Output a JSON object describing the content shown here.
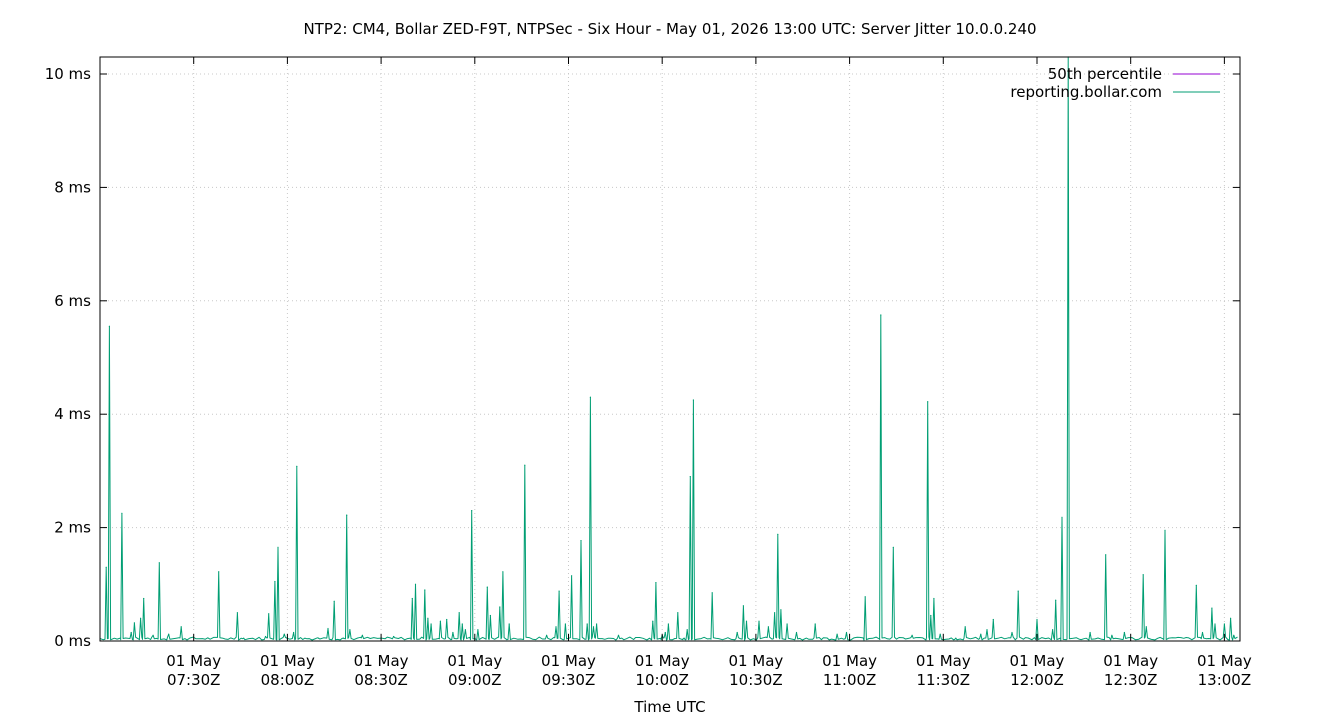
{
  "chart_data": {
    "type": "line",
    "title": "NTP2: CM4, Bollar ZED-F9T, NTPSec - Six Hour - May 01, 2026 13:00 UTC: Server Jitter 10.0.0.240",
    "xlabel": "Time UTC",
    "ylabel": "",
    "x_range": [
      "2026-05-01T07:00Z",
      "2026-05-01T13:05Z"
    ],
    "ylim": [
      0,
      10.3
    ],
    "y_unit": "ms",
    "y_ticks": [
      {
        "value": 0,
        "label": "0 ms"
      },
      {
        "value": 2,
        "label": "2 ms"
      },
      {
        "value": 4,
        "label": "4 ms"
      },
      {
        "value": 6,
        "label": "6 ms"
      },
      {
        "value": 8,
        "label": "8 ms"
      },
      {
        "value": 10,
        "label": "10 ms"
      }
    ],
    "x_ticks": [
      {
        "value": "2026-05-01T07:30Z",
        "line1": "01 May",
        "line2": "07:30Z"
      },
      {
        "value": "2026-05-01T08:00Z",
        "line1": "01 May",
        "line2": "08:00Z"
      },
      {
        "value": "2026-05-01T08:30Z",
        "line1": "01 May",
        "line2": "08:30Z"
      },
      {
        "value": "2026-05-01T09:00Z",
        "line1": "01 May",
        "line2": "09:00Z"
      },
      {
        "value": "2026-05-01T09:30Z",
        "line1": "01 May",
        "line2": "09:30Z"
      },
      {
        "value": "2026-05-01T10:00Z",
        "line1": "01 May",
        "line2": "10:00Z"
      },
      {
        "value": "2026-05-01T10:30Z",
        "line1": "01 May",
        "line2": "10:30Z"
      },
      {
        "value": "2026-05-01T11:00Z",
        "line1": "01 May",
        "line2": "11:00Z"
      },
      {
        "value": "2026-05-01T11:30Z",
        "line1": "01 May",
        "line2": "11:30Z"
      },
      {
        "value": "2026-05-01T12:00Z",
        "line1": "01 May",
        "line2": "12:00Z"
      },
      {
        "value": "2026-05-01T12:30Z",
        "line1": "01 May",
        "line2": "12:30Z"
      },
      {
        "value": "2026-05-01T13:00Z",
        "line1": "01 May",
        "line2": "13:00Z"
      }
    ],
    "grid": true,
    "legend_position": "top-right",
    "series": [
      {
        "name": "50th percentile",
        "color": "#9400d3",
        "points": []
      },
      {
        "name": "reporting.bollar.com",
        "color": "#009e73",
        "points": [
          [
            "2026-05-01T07:02Z",
            1.3
          ],
          [
            "2026-05-01T07:03Z",
            5.55
          ],
          [
            "2026-05-01T07:07Z",
            2.25
          ],
          [
            "2026-05-01T07:10Z",
            0.15
          ],
          [
            "2026-05-01T07:11Z",
            0.32
          ],
          [
            "2026-05-01T07:13Z",
            0.4
          ],
          [
            "2026-05-01T07:14Z",
            0.75
          ],
          [
            "2026-05-01T07:17Z",
            0.1
          ],
          [
            "2026-05-01T07:19Z",
            1.38
          ],
          [
            "2026-05-01T07:22Z",
            0.12
          ],
          [
            "2026-05-01T07:26Z",
            0.25
          ],
          [
            "2026-05-01T07:38Z",
            1.22
          ],
          [
            "2026-05-01T07:44Z",
            0.5
          ],
          [
            "2026-05-01T07:46Z",
            0.05
          ],
          [
            "2026-05-01T07:53Z",
            0.08
          ],
          [
            "2026-05-01T07:54Z",
            0.48
          ],
          [
            "2026-05-01T07:56Z",
            1.05
          ],
          [
            "2026-05-01T07:57Z",
            1.65
          ],
          [
            "2026-05-01T07:59Z",
            0.12
          ],
          [
            "2026-05-01T08:02Z",
            0.15
          ],
          [
            "2026-05-01T08:03Z",
            3.08
          ],
          [
            "2026-05-01T08:10Z",
            0.05
          ],
          [
            "2026-05-01T08:13Z",
            0.22
          ],
          [
            "2026-05-01T08:15Z",
            0.7
          ],
          [
            "2026-05-01T08:18Z",
            0.05
          ],
          [
            "2026-05-01T08:19Z",
            2.22
          ],
          [
            "2026-05-01T08:20Z",
            0.2
          ],
          [
            "2026-05-01T08:24Z",
            0.1
          ],
          [
            "2026-05-01T08:34Z",
            0.08
          ],
          [
            "2026-05-01T08:40Z",
            0.75
          ],
          [
            "2026-05-01T08:41Z",
            1.0
          ],
          [
            "2026-05-01T08:44Z",
            0.9
          ],
          [
            "2026-05-01T08:45Z",
            0.4
          ],
          [
            "2026-05-01T08:46Z",
            0.3
          ],
          [
            "2026-05-01T08:49Z",
            0.35
          ],
          [
            "2026-05-01T08:51Z",
            0.38
          ],
          [
            "2026-05-01T08:53Z",
            0.15
          ],
          [
            "2026-05-01T08:55Z",
            0.5
          ],
          [
            "2026-05-01T08:56Z",
            0.3
          ],
          [
            "2026-05-01T08:57Z",
            0.2
          ],
          [
            "2026-05-01T08:59Z",
            2.3
          ],
          [
            "2026-05-01T09:01Z",
            0.2
          ],
          [
            "2026-05-01T09:04Z",
            0.95
          ],
          [
            "2026-05-01T09:05Z",
            0.45
          ],
          [
            "2026-05-01T09:08Z",
            0.6
          ],
          [
            "2026-05-01T09:09Z",
            1.22
          ],
          [
            "2026-05-01T09:11Z",
            0.3
          ],
          [
            "2026-05-01T09:16Z",
            3.1
          ],
          [
            "2026-05-01T09:23Z",
            0.1
          ],
          [
            "2026-05-01T09:26Z",
            0.25
          ],
          [
            "2026-05-01T09:27Z",
            0.88
          ],
          [
            "2026-05-01T09:29Z",
            0.3
          ],
          [
            "2026-05-01T09:31Z",
            1.15
          ],
          [
            "2026-05-01T09:34Z",
            1.77
          ],
          [
            "2026-05-01T09:36Z",
            0.3
          ],
          [
            "2026-05-01T09:37Z",
            4.3
          ],
          [
            "2026-05-01T09:38Z",
            0.25
          ],
          [
            "2026-05-01T09:39Z",
            0.3
          ],
          [
            "2026-05-01T09:46Z",
            0.1
          ],
          [
            "2026-05-01T09:57Z",
            0.35
          ],
          [
            "2026-05-01T09:58Z",
            1.03
          ],
          [
            "2026-05-01T10:00Z",
            0.1
          ],
          [
            "2026-05-01T10:01Z",
            0.15
          ],
          [
            "2026-05-01T10:02Z",
            0.3
          ],
          [
            "2026-05-01T10:05Z",
            0.5
          ],
          [
            "2026-05-01T10:07Z",
            0.05
          ],
          [
            "2026-05-01T10:08Z",
            0.2
          ],
          [
            "2026-05-01T10:09Z",
            2.9
          ],
          [
            "2026-05-01T10:10Z",
            4.25
          ],
          [
            "2026-05-01T10:16Z",
            0.85
          ],
          [
            "2026-05-01T10:24Z",
            0.15
          ],
          [
            "2026-05-01T10:26Z",
            0.62
          ],
          [
            "2026-05-01T10:27Z",
            0.35
          ],
          [
            "2026-05-01T10:31Z",
            0.35
          ],
          [
            "2026-05-01T10:34Z",
            0.25
          ],
          [
            "2026-05-01T10:36Z",
            0.5
          ],
          [
            "2026-05-01T10:37Z",
            1.88
          ],
          [
            "2026-05-01T10:38Z",
            0.55
          ],
          [
            "2026-05-01T10:40Z",
            0.3
          ],
          [
            "2026-05-01T10:43Z",
            0.15
          ],
          [
            "2026-05-01T10:49Z",
            0.3
          ],
          [
            "2026-05-01T10:56Z",
            0.12
          ],
          [
            "2026-05-01T10:59Z",
            0.15
          ],
          [
            "2026-05-01T11:05Z",
            0.78
          ],
          [
            "2026-05-01T11:10Z",
            5.75
          ],
          [
            "2026-05-01T11:14Z",
            1.65
          ],
          [
            "2026-05-01T11:20Z",
            0.1
          ],
          [
            "2026-05-01T11:25Z",
            4.22
          ],
          [
            "2026-05-01T11:26Z",
            0.45
          ],
          [
            "2026-05-01T11:27Z",
            0.75
          ],
          [
            "2026-05-01T11:29Z",
            0.12
          ],
          [
            "2026-05-01T11:34Z",
            0.05
          ],
          [
            "2026-05-01T11:37Z",
            0.25
          ],
          [
            "2026-05-01T11:42Z",
            0.12
          ],
          [
            "2026-05-01T11:44Z",
            0.2
          ],
          [
            "2026-05-01T11:46Z",
            0.38
          ],
          [
            "2026-05-01T11:52Z",
            0.15
          ],
          [
            "2026-05-01T11:54Z",
            0.88
          ],
          [
            "2026-05-01T12:00Z",
            0.38
          ],
          [
            "2026-05-01T12:05Z",
            0.2
          ],
          [
            "2026-05-01T12:06Z",
            0.72
          ],
          [
            "2026-05-01T12:08Z",
            2.18
          ],
          [
            "2026-05-01T12:10Z",
            10.3
          ],
          [
            "2026-05-01T12:17Z",
            0.15
          ],
          [
            "2026-05-01T12:22Z",
            1.52
          ],
          [
            "2026-05-01T12:24Z",
            0.1
          ],
          [
            "2026-05-01T12:28Z",
            0.15
          ],
          [
            "2026-05-01T12:34Z",
            1.17
          ],
          [
            "2026-05-01T12:35Z",
            0.25
          ],
          [
            "2026-05-01T12:41Z",
            1.95
          ],
          [
            "2026-05-01T12:51Z",
            0.98
          ],
          [
            "2026-05-01T12:53Z",
            0.15
          ],
          [
            "2026-05-01T12:56Z",
            0.58
          ],
          [
            "2026-05-01T12:57Z",
            0.3
          ],
          [
            "2026-05-01T13:00Z",
            0.3
          ],
          [
            "2026-05-01T13:02Z",
            0.4
          ],
          [
            "2026-05-01T13:03Z",
            0.1
          ]
        ]
      }
    ]
  }
}
